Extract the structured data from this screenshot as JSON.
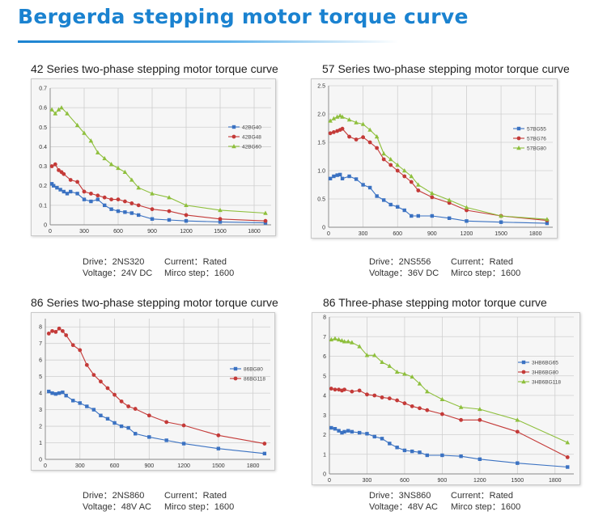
{
  "header": {
    "title": "Bergerda stepping motor torque curve"
  },
  "colors": {
    "title": "#1a82d0",
    "blue": "#3b72c2",
    "red": "#c43a38",
    "green": "#8ebf3c",
    "grid": "#cfcfcf"
  },
  "panels": [
    {
      "title": "42 Series two-phase stepping motor torque curve",
      "info": {
        "drive": "Drive：2NS320",
        "current": "Current：Rated",
        "voltage": "Voltage：24V DC",
        "step": "Mirco step：1600"
      }
    },
    {
      "title": "57 Series two-phase stepping motor torque curve",
      "info": {
        "drive": "Drive：2NS556",
        "current": "Current：Rated",
        "voltage": "Voltage：36V DC",
        "step": "Mirco step：1600"
      }
    },
    {
      "title": "86 Series two-phase stepping motor torque curve",
      "info": {
        "drive": "Drive：2NS860",
        "current": "Current：Rated",
        "voltage": "Voltage：48V AC",
        "step": "Mirco step：1600"
      }
    },
    {
      "title": "86 Three-phase stepping motor torque curve",
      "info": {
        "drive": "Drive：3NS860",
        "current": "Current：Rated",
        "voltage": "Voltage：48V AC",
        "step": "Mirco step：1600"
      }
    }
  ],
  "chart_data": [
    {
      "type": "line",
      "title": "42 Series two-phase stepping motor torque curve",
      "xticks": [
        0,
        300,
        600,
        900,
        1200,
        1500,
        1800
      ],
      "xlim": [
        0,
        1950
      ],
      "yticks": [
        0,
        0.1,
        0.2,
        0.3,
        0.4,
        0.5,
        0.6,
        0.7
      ],
      "ylim": [
        0,
        0.7
      ],
      "y_decimals": 1,
      "grid": true,
      "legend": "right",
      "series": [
        {
          "name": "42BG40",
          "color": "#3b72c2",
          "marker": "square",
          "x": [
            15,
            30,
            60,
            90,
            120,
            150,
            180,
            240,
            300,
            360,
            420,
            480,
            540,
            600,
            660,
            720,
            780,
            900,
            1050,
            1200,
            1500,
            1900
          ],
          "y": [
            0.21,
            0.2,
            0.19,
            0.18,
            0.17,
            0.16,
            0.17,
            0.16,
            0.13,
            0.12,
            0.13,
            0.1,
            0.08,
            0.07,
            0.065,
            0.06,
            0.05,
            0.03,
            0.025,
            0.02,
            0.015,
            0.01
          ]
        },
        {
          "name": "42BG48",
          "color": "#c43a38",
          "marker": "circle",
          "x": [
            15,
            45,
            75,
            100,
            120,
            180,
            240,
            300,
            360,
            420,
            480,
            540,
            600,
            660,
            720,
            780,
            900,
            1050,
            1200,
            1500,
            1900
          ],
          "y": [
            0.3,
            0.31,
            0.28,
            0.27,
            0.26,
            0.23,
            0.22,
            0.17,
            0.16,
            0.15,
            0.14,
            0.13,
            0.13,
            0.12,
            0.11,
            0.1,
            0.08,
            0.07,
            0.05,
            0.03,
            0.02
          ]
        },
        {
          "name": "42BG60",
          "color": "#8ebf3c",
          "marker": "triangle",
          "x": [
            15,
            45,
            75,
            100,
            150,
            240,
            300,
            360,
            420,
            480,
            540,
            600,
            660,
            720,
            780,
            900,
            1050,
            1200,
            1500,
            1900
          ],
          "y": [
            0.59,
            0.57,
            0.59,
            0.6,
            0.57,
            0.51,
            0.47,
            0.43,
            0.37,
            0.34,
            0.31,
            0.29,
            0.27,
            0.23,
            0.19,
            0.16,
            0.14,
            0.1,
            0.075,
            0.06
          ]
        }
      ]
    },
    {
      "type": "line",
      "title": "57 Series two-phase stepping motor torque curve",
      "xticks": [
        0,
        300,
        600,
        900,
        1200,
        1500,
        1800
      ],
      "xlim": [
        0,
        1950
      ],
      "yticks": [
        0,
        0.5,
        1,
        1.5,
        2,
        2.5
      ],
      "ylim": [
        0,
        2.5
      ],
      "y_decimals": 1,
      "grid": true,
      "legend": "right",
      "series": [
        {
          "name": "57BG55",
          "color": "#3b72c2",
          "marker": "square",
          "x": [
            15,
            45,
            75,
            100,
            120,
            180,
            240,
            300,
            360,
            420,
            480,
            540,
            600,
            660,
            720,
            780,
            900,
            1050,
            1200,
            1500,
            1900
          ],
          "y": [
            0.86,
            0.9,
            0.92,
            0.93,
            0.86,
            0.9,
            0.85,
            0.75,
            0.7,
            0.55,
            0.48,
            0.4,
            0.36,
            0.3,
            0.2,
            0.2,
            0.2,
            0.16,
            0.11,
            0.09,
            0.07
          ]
        },
        {
          "name": "57BG76",
          "color": "#c43a38",
          "marker": "circle",
          "x": [
            15,
            45,
            75,
            100,
            120,
            180,
            240,
            300,
            360,
            420,
            480,
            540,
            600,
            660,
            720,
            780,
            900,
            1050,
            1200,
            1500,
            1900
          ],
          "y": [
            1.66,
            1.68,
            1.7,
            1.72,
            1.74,
            1.6,
            1.55,
            1.59,
            1.5,
            1.4,
            1.2,
            1.1,
            1.0,
            0.9,
            0.8,
            0.65,
            0.53,
            0.43,
            0.3,
            0.2,
            0.12
          ]
        },
        {
          "name": "57BG80",
          "color": "#8ebf3c",
          "marker": "triangle",
          "x": [
            15,
            45,
            75,
            100,
            120,
            180,
            240,
            300,
            360,
            420,
            480,
            540,
            600,
            660,
            720,
            780,
            900,
            1050,
            1200,
            1500,
            1900
          ],
          "y": [
            1.88,
            1.92,
            1.95,
            1.97,
            1.95,
            1.9,
            1.85,
            1.82,
            1.72,
            1.6,
            1.3,
            1.2,
            1.1,
            1.0,
            0.9,
            0.75,
            0.6,
            0.48,
            0.35,
            0.2,
            0.14
          ]
        }
      ]
    },
    {
      "type": "line",
      "title": "86 Series two-phase stepping motor torque curve",
      "xticks": [
        0,
        300,
        600,
        900,
        1200,
        1500,
        1800
      ],
      "xlim": [
        0,
        1950
      ],
      "yticks": [
        0,
        1,
        2,
        3,
        4,
        5,
        6,
        7,
        8
      ],
      "ylim": [
        0,
        8.5
      ],
      "y_decimals": 0,
      "grid": true,
      "legend": "right",
      "series": [
        {
          "name": "86BG80",
          "color": "#3b72c2",
          "marker": "square",
          "x": [
            30,
            60,
            90,
            120,
            150,
            180,
            240,
            300,
            360,
            420,
            480,
            540,
            600,
            660,
            720,
            780,
            900,
            1050,
            1200,
            1500,
            1900
          ],
          "y": [
            4.1,
            4.0,
            3.95,
            4.0,
            4.05,
            3.85,
            3.55,
            3.4,
            3.2,
            3.0,
            2.65,
            2.45,
            2.2,
            2.0,
            1.9,
            1.55,
            1.35,
            1.15,
            0.95,
            0.65,
            0.35
          ]
        },
        {
          "name": "86BG118",
          "color": "#c43a38",
          "marker": "circle",
          "x": [
            30,
            60,
            90,
            120,
            150,
            180,
            240,
            300,
            360,
            420,
            480,
            540,
            600,
            660,
            720,
            780,
            900,
            1050,
            1200,
            1500,
            1900
          ],
          "y": [
            7.6,
            7.75,
            7.7,
            7.9,
            7.75,
            7.5,
            6.9,
            6.6,
            5.7,
            5.1,
            4.7,
            4.3,
            3.9,
            3.5,
            3.2,
            3.05,
            2.65,
            2.25,
            2.05,
            1.45,
            0.95
          ]
        }
      ]
    },
    {
      "type": "line",
      "title": "86 Three-phase stepping motor torque curve",
      "xticks": [
        0,
        300,
        600,
        900,
        1200,
        1500,
        1800
      ],
      "xlim": [
        0,
        1950
      ],
      "yticks": [
        0,
        1,
        2,
        3,
        4,
        5,
        6,
        7,
        8
      ],
      "ylim": [
        0,
        8
      ],
      "y_decimals": 0,
      "grid": true,
      "legend": "right",
      "series": [
        {
          "name": "3HB6BG65",
          "color": "#3b72c2",
          "marker": "square",
          "x": [
            15,
            45,
            75,
            100,
            120,
            150,
            180,
            240,
            300,
            360,
            420,
            480,
            540,
            600,
            660,
            720,
            780,
            900,
            1050,
            1200,
            1500,
            1900
          ],
          "y": [
            2.35,
            2.3,
            2.2,
            2.1,
            2.15,
            2.2,
            2.15,
            2.1,
            2.05,
            1.9,
            1.8,
            1.55,
            1.35,
            1.2,
            1.15,
            1.1,
            0.95,
            0.95,
            0.9,
            0.75,
            0.55,
            0.35
          ]
        },
        {
          "name": "3HB6BG80",
          "color": "#c43a38",
          "marker": "circle",
          "x": [
            15,
            45,
            75,
            100,
            120,
            180,
            240,
            300,
            360,
            420,
            480,
            540,
            600,
            660,
            720,
            780,
            900,
            1050,
            1200,
            1500,
            1900
          ],
          "y": [
            4.35,
            4.3,
            4.3,
            4.25,
            4.3,
            4.2,
            4.25,
            4.05,
            4.0,
            3.9,
            3.85,
            3.75,
            3.6,
            3.45,
            3.35,
            3.25,
            3.05,
            2.75,
            2.75,
            2.15,
            0.85
          ]
        },
        {
          "name": "3HB6BG118",
          "color": "#8ebf3c",
          "marker": "triangle",
          "x": [
            15,
            45,
            75,
            100,
            120,
            150,
            180,
            240,
            300,
            360,
            420,
            480,
            540,
            600,
            660,
            720,
            780,
            900,
            1050,
            1200,
            1500,
            1900
          ],
          "y": [
            6.85,
            6.9,
            6.85,
            6.8,
            6.75,
            6.75,
            6.7,
            6.5,
            6.05,
            6.05,
            5.7,
            5.5,
            5.2,
            5.1,
            4.95,
            4.6,
            4.2,
            3.8,
            3.4,
            3.3,
            2.75,
            1.6
          ]
        }
      ]
    }
  ]
}
